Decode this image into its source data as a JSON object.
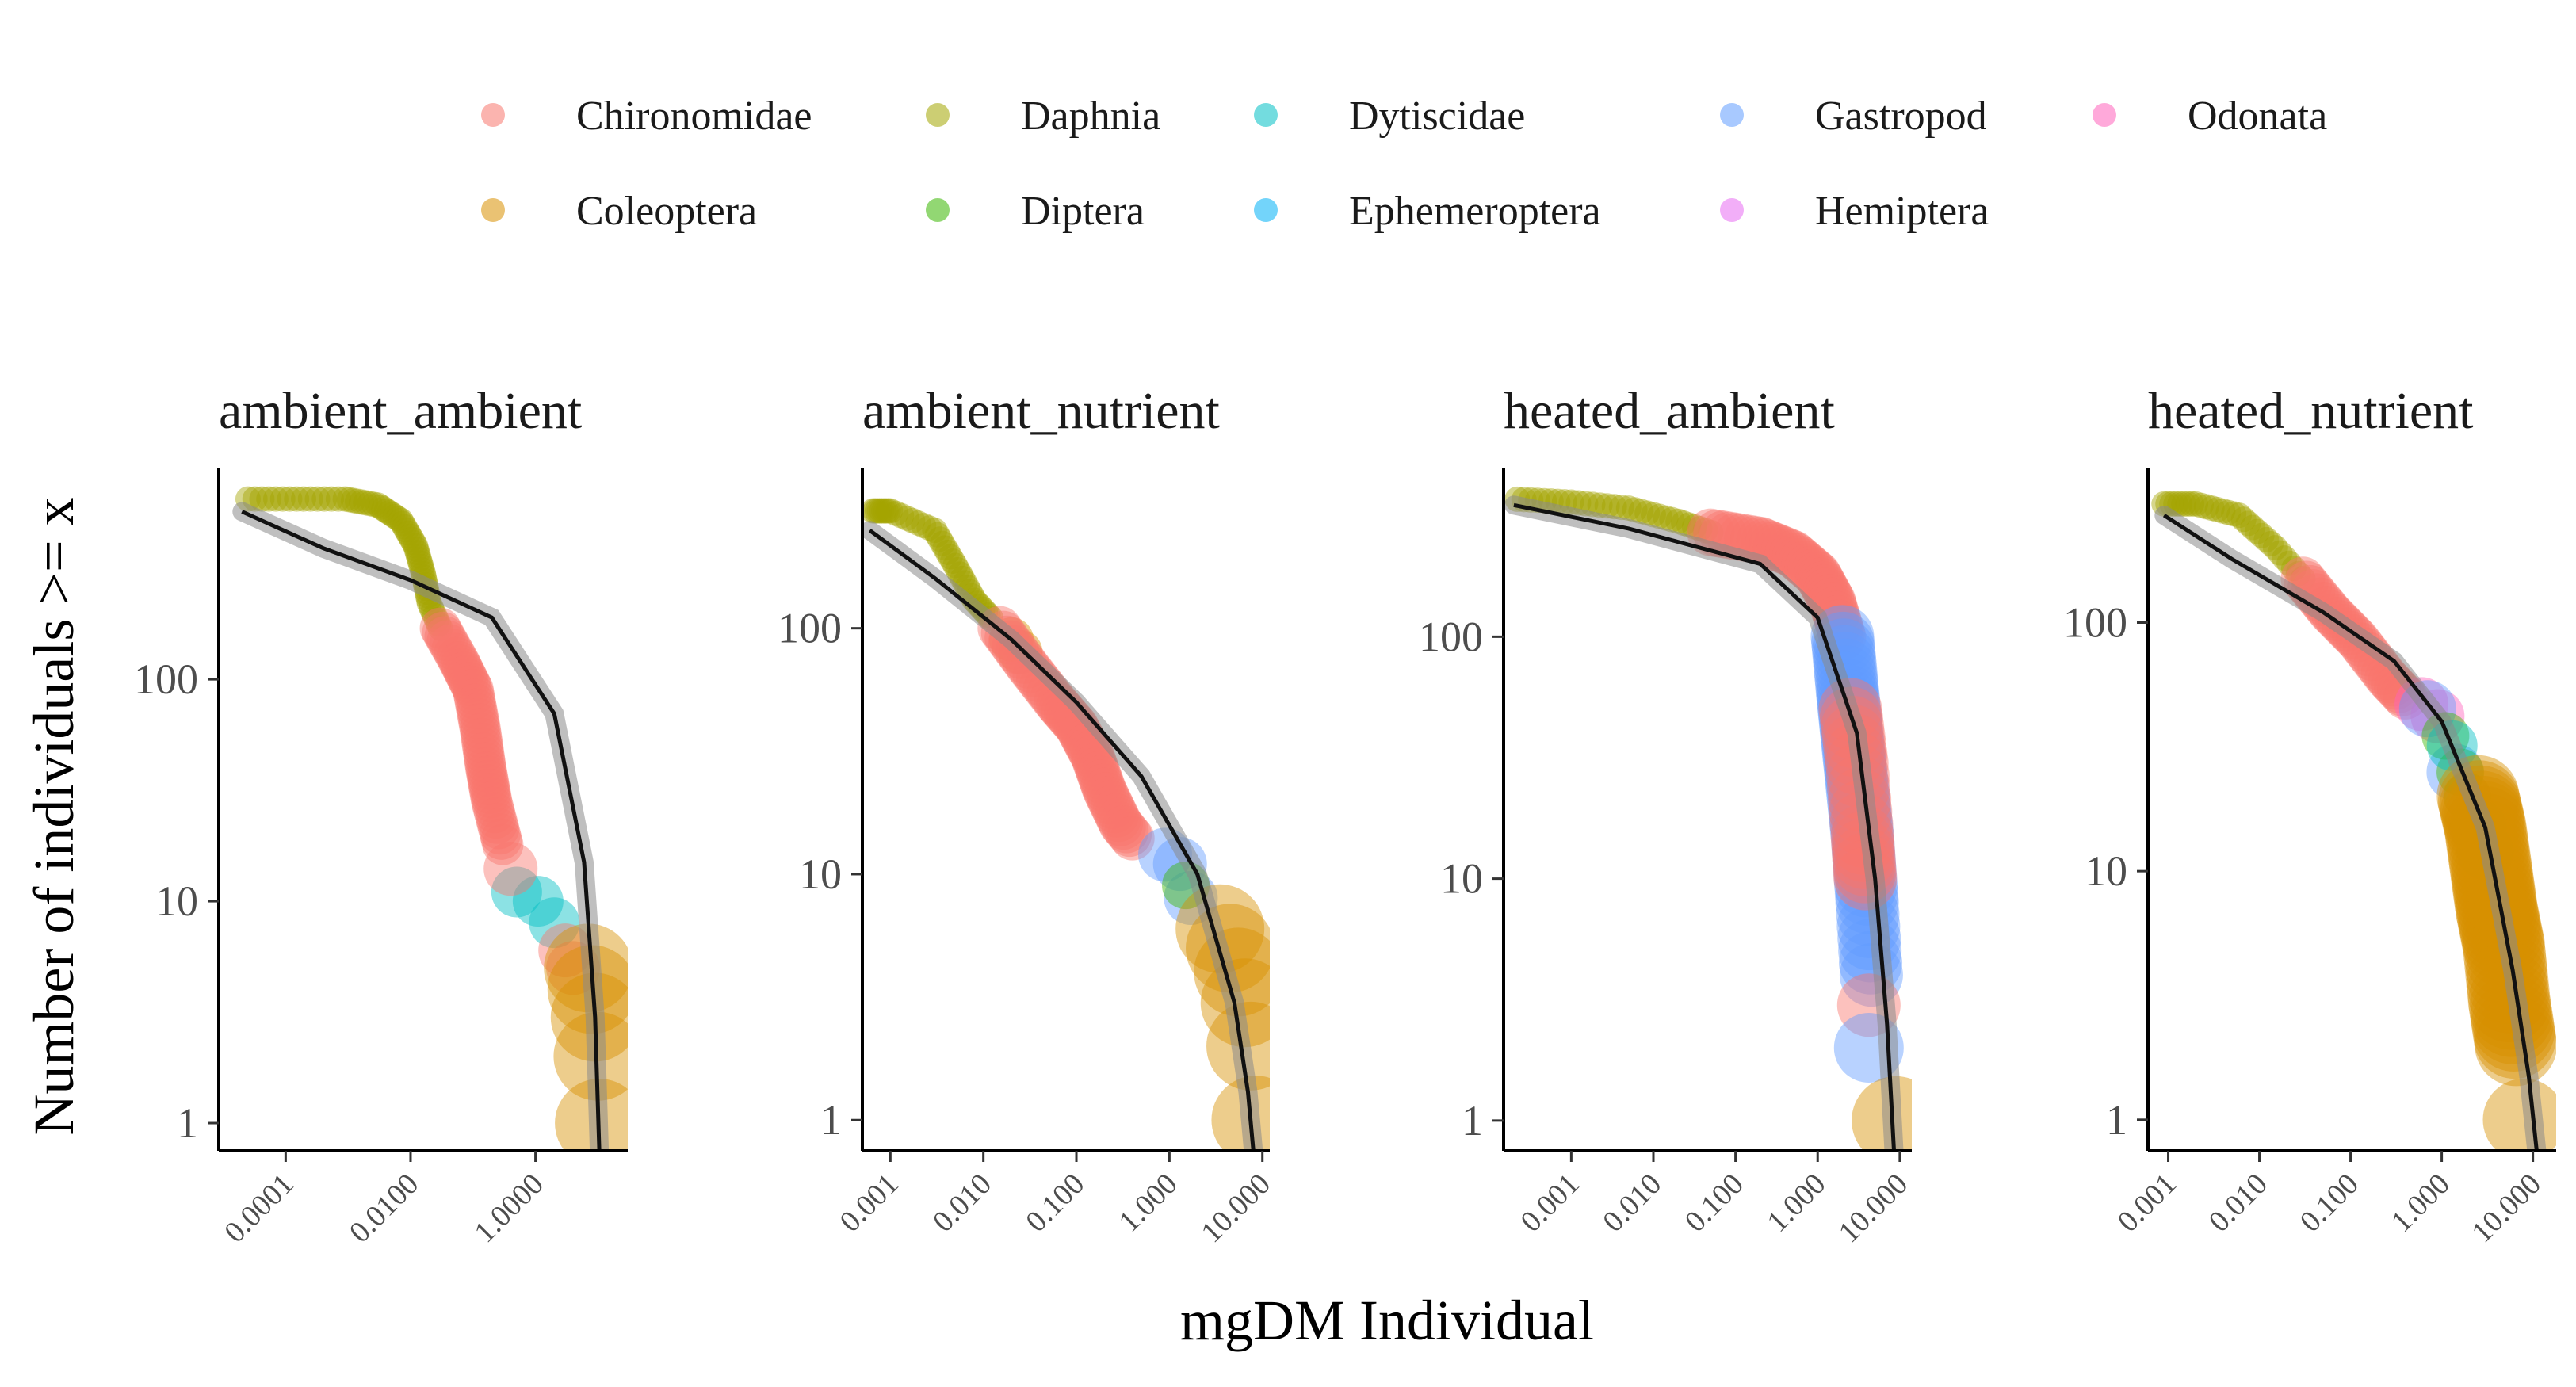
{
  "chart_data": {
    "type": "scatter",
    "xlabel": "mgDM Individual",
    "ylabel": "Number of individuals >= x",
    "x_scale": "log10",
    "y_scale": "log10",
    "legend": {
      "placement": "top",
      "entries": [
        {
          "name": "Chironomidae",
          "color": "#F8766D"
        },
        {
          "name": "Coleoptera",
          "color": "#D89000"
        },
        {
          "name": "Daphnia",
          "color": "#A3A500"
        },
        {
          "name": "Diptera",
          "color": "#39B600"
        },
        {
          "name": "Dytiscidae",
          "color": "#00BFC4"
        },
        {
          "name": "Ephemeroptera",
          "color": "#00B0F6"
        },
        {
          "name": "Gastropod",
          "color": "#619CFF"
        },
        {
          "name": "Hemiptera",
          "color": "#E76BF3"
        },
        {
          "name": "Odonata",
          "color": "#FF62BC"
        }
      ]
    },
    "panels": [
      {
        "title": "ambient_ambient",
        "xlim": [
          8.5e-06,
          30
        ],
        "ylim": [
          0.75,
          900
        ],
        "x_ticks": [
          {
            "v": 0.0001,
            "label": "0.0001"
          },
          {
            "v": 0.01,
            "label": "0.0100"
          },
          {
            "v": 1,
            "label": "1.0000"
          }
        ],
        "y_ticks": [
          {
            "v": 1,
            "label": "1"
          },
          {
            "v": 10,
            "label": "10"
          },
          {
            "v": 100,
            "label": "100"
          }
        ],
        "fit": [
          [
            2e-05,
            570
          ],
          [
            0.0004,
            390
          ],
          [
            0.01,
            280
          ],
          [
            0.2,
            190
          ],
          [
            2,
            70
          ],
          [
            6,
            15
          ],
          [
            9,
            3
          ],
          [
            10.5,
            0.75
          ]
        ],
        "segments": [
          {
            "group": "Daphnia",
            "size": 16,
            "points": [
              [
                2.5e-05,
                650,
                1
              ],
              [
                0.0009,
                650,
                14
              ],
              [
                0.003,
                610,
                8
              ],
              [
                0.007,
                520,
                8
              ],
              [
                0.012,
                400,
                8
              ],
              [
                0.016,
                300,
                8
              ],
              [
                0.02,
                220,
                8
              ],
              [
                0.03,
                170,
                6
              ]
            ]
          },
          {
            "group": "Chironomidae",
            "size": 26,
            "points": [
              [
                0.03,
                170,
                1
              ],
              [
                0.06,
                120,
                8
              ],
              [
                0.1,
                90,
                8
              ],
              [
                0.13,
                60,
                8
              ],
              [
                0.16,
                40,
                8
              ],
              [
                0.2,
                28,
                8
              ],
              [
                0.3,
                18,
                8
              ]
            ]
          },
          {
            "group": "Dytiscidae",
            "size": 32,
            "points": [
              [
                0.5,
                11,
                1
              ],
              [
                1.1,
                10,
                1
              ],
              [
                2,
                8,
                1
              ]
            ]
          },
          {
            "group": "Chironomidae",
            "size": 34,
            "points": [
              [
                0.4,
                14,
                1
              ],
              [
                3,
                6,
                1
              ],
              [
                4,
                5,
                1
              ]
            ]
          },
          {
            "group": "Coleoptera",
            "size": 56,
            "points": [
              [
                7,
                5,
                1
              ],
              [
                8,
                4,
                1
              ],
              [
                9,
                3,
                1
              ],
              [
                10,
                2,
                1
              ],
              [
                10.5,
                1,
                1
              ]
            ]
          }
        ]
      },
      {
        "title": "ambient_nutrient",
        "xlim": [
          0.0005,
          12
        ],
        "ylim": [
          0.75,
          450
        ],
        "x_ticks": [
          {
            "v": 0.001,
            "label": "0.001"
          },
          {
            "v": 0.01,
            "label": "0.010"
          },
          {
            "v": 0.1,
            "label": "0.100"
          },
          {
            "v": 1,
            "label": "1.000"
          },
          {
            "v": 10,
            "label": "10.000"
          }
        ],
        "y_ticks": [
          {
            "v": 1,
            "label": "1"
          },
          {
            "v": 10,
            "label": "10"
          },
          {
            "v": 100,
            "label": "100"
          }
        ],
        "fit": [
          [
            0.0006,
            250
          ],
          [
            0.003,
            160
          ],
          [
            0.02,
            90
          ],
          [
            0.1,
            50
          ],
          [
            0.5,
            25
          ],
          [
            2,
            10
          ],
          [
            5,
            3
          ],
          [
            7,
            1.3
          ],
          [
            8,
            0.75
          ]
        ],
        "segments": [
          {
            "group": "Daphnia",
            "size": 16,
            "points": [
              [
                0.00065,
                300,
                1
              ],
              [
                0.001,
                300,
                8
              ],
              [
                0.003,
                250,
                8
              ],
              [
                0.005,
                180,
                8
              ],
              [
                0.008,
                130,
                8
              ],
              [
                0.012,
                110,
                6
              ]
            ]
          },
          {
            "group": "Coleoptera",
            "size": 28,
            "points": [
              [
                0.02,
                90,
                1
              ],
              [
                0.025,
                80,
                1
              ]
            ]
          },
          {
            "group": "Chironomidae",
            "size": 28,
            "points": [
              [
                0.015,
                100,
                1
              ],
              [
                0.03,
                70,
                8
              ],
              [
                0.06,
                50,
                8
              ],
              [
                0.1,
                40,
                8
              ],
              [
                0.15,
                30,
                8
              ],
              [
                0.2,
                22,
                8
              ],
              [
                0.3,
                16,
                8
              ],
              [
                0.4,
                14,
                4
              ]
            ]
          },
          {
            "group": "Gastropod",
            "size": 34,
            "points": [
              [
                0.9,
                12,
                1
              ],
              [
                1.3,
                11,
                1
              ],
              [
                1.7,
                8,
                1
              ]
            ]
          },
          {
            "group": "Diptera",
            "size": 30,
            "points": [
              [
                1.5,
                9,
                1
              ]
            ]
          },
          {
            "group": "Coleoptera",
            "size": 56,
            "points": [
              [
                3.5,
                6,
                1
              ],
              [
                4.5,
                5,
                1
              ],
              [
                5.5,
                4,
                1
              ],
              [
                6.5,
                3,
                1
              ],
              [
                7.5,
                2,
                1
              ],
              [
                8.5,
                1,
                1
              ]
            ]
          }
        ]
      },
      {
        "title": "heated_ambient",
        "xlim": [
          0.00015,
          14
        ],
        "ylim": [
          0.75,
          500
        ],
        "x_ticks": [
          {
            "v": 0.001,
            "label": "0.001"
          },
          {
            "v": 0.01,
            "label": "0.010"
          },
          {
            "v": 0.1,
            "label": "0.100"
          },
          {
            "v": 1,
            "label": "1.000"
          },
          {
            "v": 10,
            "label": "10.000"
          }
        ],
        "y_ticks": [
          {
            "v": 1,
            "label": "1"
          },
          {
            "v": 10,
            "label": "10"
          },
          {
            "v": 100,
            "label": "100"
          }
        ],
        "fit": [
          [
            0.0002,
            350
          ],
          [
            0.005,
            280
          ],
          [
            0.2,
            200
          ],
          [
            1,
            120
          ],
          [
            3,
            40
          ],
          [
            5,
            10
          ],
          [
            7,
            2.5
          ],
          [
            8.5,
            0.75
          ]
        ],
        "segments": [
          {
            "group": "Daphnia",
            "size": 16,
            "points": [
              [
                0.00022,
                370,
                1
              ],
              [
                0.001,
                360,
                8
              ],
              [
                0.005,
                340,
                8
              ],
              [
                0.02,
                300,
                8
              ],
              [
                0.05,
                270,
                6
              ]
            ]
          },
          {
            "group": "Chironomidae",
            "size": 30,
            "points": [
              [
                0.05,
                270,
                1
              ],
              [
                0.2,
                250,
                8
              ],
              [
                0.5,
                220,
                8
              ],
              [
                1,
                180,
                8
              ],
              [
                1.5,
                140,
                8
              ],
              [
                2,
                100,
                8
              ]
            ]
          },
          {
            "group": "Gastropod",
            "size": 40,
            "points": [
              [
                2,
                100,
                1
              ],
              [
                2.3,
                60,
                8
              ],
              [
                2.6,
                40,
                8
              ],
              [
                3,
                25,
                8
              ],
              [
                3.5,
                15,
                8
              ],
              [
                4,
                8,
                8
              ],
              [
                4.5,
                4,
                6
              ]
            ]
          },
          {
            "group": "Chironomidae",
            "size": 40,
            "points": [
              [
                2.5,
                50,
                1
              ],
              [
                3,
                30,
                6
              ],
              [
                3.5,
                15,
                6
              ],
              [
                3.8,
                10,
                6
              ],
              [
                4.2,
                3,
                1
              ]
            ]
          },
          {
            "group": "Gastropod",
            "size": 44,
            "points": [
              [
                4.2,
                2,
                1
              ]
            ]
          },
          {
            "group": "Coleoptera",
            "size": 56,
            "points": [
              [
                9,
                1,
                1
              ]
            ]
          }
        ]
      },
      {
        "title": "heated_nutrient",
        "xlim": [
          0.0006,
          18
        ],
        "ylim": [
          0.75,
          420
        ],
        "x_ticks": [
          {
            "v": 0.001,
            "label": "0.001"
          },
          {
            "v": 0.01,
            "label": "0.010"
          },
          {
            "v": 0.1,
            "label": "0.100"
          },
          {
            "v": 1,
            "label": "1.000"
          },
          {
            "v": 10,
            "label": "10.000"
          }
        ],
        "y_ticks": [
          {
            "v": 1,
            "label": "1"
          },
          {
            "v": 10,
            "label": "10"
          },
          {
            "v": 100,
            "label": "100"
          }
        ],
        "fit": [
          [
            0.0009,
            270
          ],
          [
            0.005,
            180
          ],
          [
            0.05,
            110
          ],
          [
            0.3,
            70
          ],
          [
            1,
            40
          ],
          [
            3,
            15
          ],
          [
            6,
            4
          ],
          [
            9,
            1.5
          ],
          [
            11,
            0.75
          ]
        ],
        "segments": [
          {
            "group": "Daphnia",
            "size": 16,
            "points": [
              [
                0.0009,
                300,
                1
              ],
              [
                0.002,
                300,
                8
              ],
              [
                0.006,
                270,
                8
              ],
              [
                0.015,
                200,
                8
              ],
              [
                0.03,
                150,
                6
              ]
            ]
          },
          {
            "group": "Chironomidae",
            "size": 28,
            "points": [
              [
                0.03,
                150,
                1
              ],
              [
                0.06,
                110,
                8
              ],
              [
                0.12,
                85,
                8
              ],
              [
                0.25,
                60,
                8
              ],
              [
                0.4,
                50,
                6
              ]
            ]
          },
          {
            "group": "Odonata",
            "size": 34,
            "points": [
              [
                0.6,
                47,
                1
              ],
              [
                0.9,
                42,
                1
              ]
            ]
          },
          {
            "group": "Gastropod",
            "size": 36,
            "points": [
              [
                0.7,
                45,
                1
              ],
              [
                1.4,
                25,
                1
              ],
              [
                2.5,
                15,
                1
              ],
              [
                3,
                12,
                1
              ]
            ]
          },
          {
            "group": "Diptera",
            "size": 30,
            "points": [
              [
                1.1,
                35,
                1
              ],
              [
                1.6,
                25,
                1
              ],
              [
                1.9,
                20,
                1
              ]
            ]
          },
          {
            "group": "Dytiscidae",
            "size": 32,
            "points": [
              [
                1.3,
                32,
                1
              ]
            ]
          },
          {
            "group": "Coleoptera",
            "size": 52,
            "points": [
              [
                2.5,
                20,
                1
              ],
              [
                3,
                15,
                6
              ],
              [
                3.5,
                10,
                6
              ],
              [
                4,
                7,
                6
              ],
              [
                4.8,
                5,
                6
              ],
              [
                5.5,
                3,
                6
              ],
              [
                6.5,
                2,
                6
              ],
              [
                8,
                1,
                1
              ]
            ]
          }
        ]
      }
    ]
  }
}
